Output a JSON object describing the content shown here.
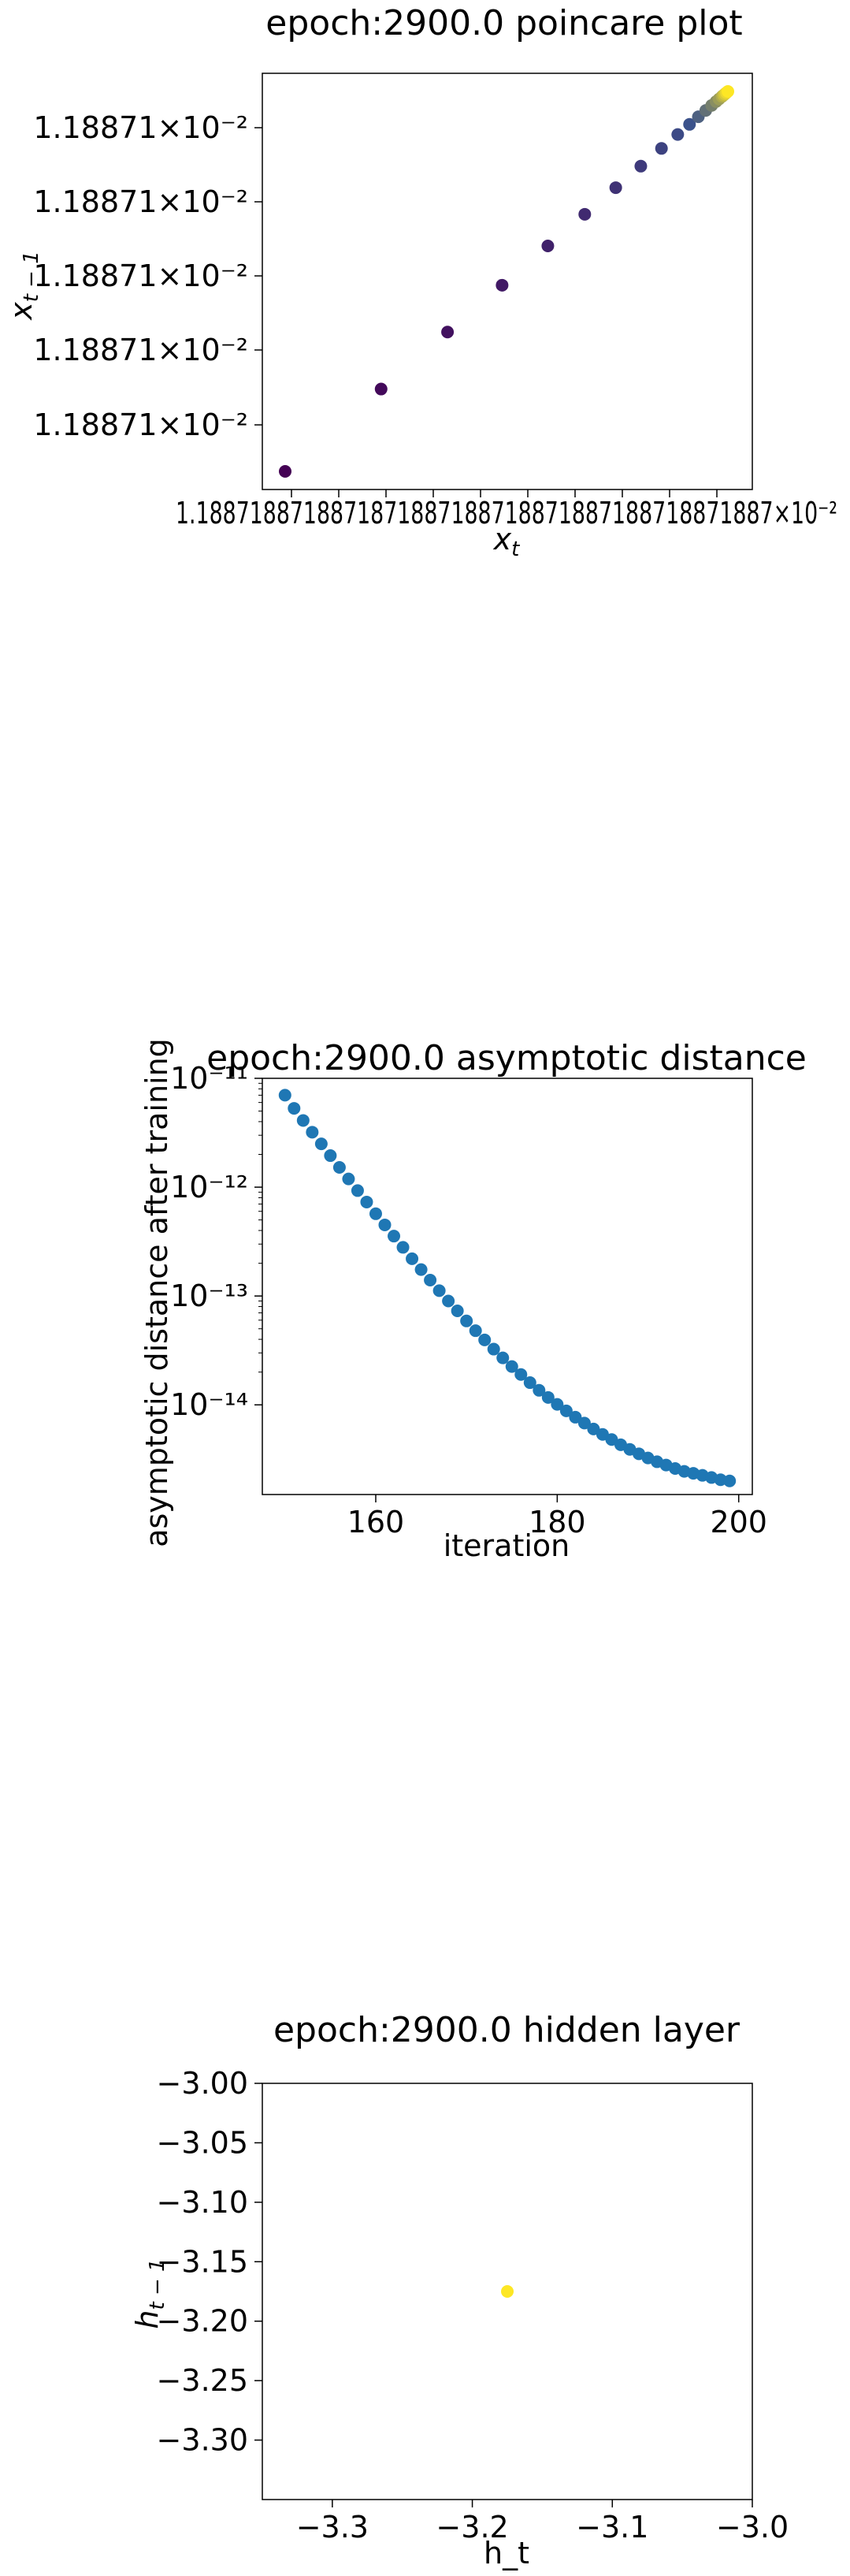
{
  "colors": {
    "viridis_start": "#440154",
    "viridis_mid": "#3b528b",
    "viridis_end": "#fde725",
    "series_blue": "#1f77b4",
    "axis": "#000000"
  },
  "chart_data": [
    {
      "type": "scatter",
      "title": "epoch:2900.0 poincare plot",
      "xlabel": "x_t",
      "ylabel": "x_{t-1}",
      "colormap": "viridis",
      "x_tick_labels_text": "1.18871×10⁻² (overlapping, unreadable)",
      "y_tick_labels": [
        "1.18871×10⁻²",
        "1.18871×10⁻²",
        "1.18871×10⁻²",
        "1.18871×10⁻²",
        "1.18871×10⁻²"
      ],
      "x_tick_text": "1.18871×10⁻²",
      "note_values": "points lie on the diagonal x_t = x_{t-1}, converging toward a fixed point near 0.0118871; color goes from dark purple (early) to yellow (late)",
      "points_relative": [
        0.0,
        0.2167,
        0.3667,
        0.49,
        0.5933,
        0.6767,
        0.7467,
        0.8033,
        0.85,
        0.8867,
        0.9133,
        0.9333,
        0.95,
        0.9633,
        0.9733,
        0.98,
        0.9867,
        0.99,
        0.9933,
        0.9967,
        1.0
      ]
    },
    {
      "type": "scatter",
      "title": "epoch:2900.0 asymptotic distance",
      "xlabel": "iteration",
      "ylabel": "asymptotic distance after training",
      "yscale": "log",
      "xlim": [
        147.5,
        201.5
      ],
      "ylim": [
        1.5e-15,
        1e-11
      ],
      "x_ticks": [
        160,
        180,
        200
      ],
      "y_ticks": [
        "10⁻¹¹",
        "10⁻¹²",
        "10⁻¹³",
        "10⁻¹⁴"
      ],
      "y_tick_values": [
        1e-11,
        1e-12,
        1e-13,
        1e-14
      ],
      "x": [
        150,
        151,
        152,
        153,
        154,
        155,
        156,
        157,
        158,
        159,
        160,
        161,
        162,
        163,
        164,
        165,
        166,
        167,
        168,
        169,
        170,
        171,
        172,
        173,
        174,
        175,
        176,
        177,
        178,
        179,
        180,
        181,
        182,
        183,
        184,
        185,
        186,
        187,
        188,
        189,
        190,
        191,
        192,
        193,
        194,
        195,
        196,
        197,
        198,
        199
      ],
      "y": [
        7e-12,
        5.3e-12,
        4.1e-12,
        3.2e-12,
        2.5e-12,
        1.95e-12,
        1.52e-12,
        1.19e-12,
        9.3e-13,
        7.3e-13,
        5.7e-13,
        4.5e-13,
        3.55e-13,
        2.8e-13,
        2.2e-13,
        1.75e-13,
        1.4e-13,
        1.12e-13,
        9e-14,
        7.3e-14,
        5.9e-14,
        4.8e-14,
        3.95e-14,
        3.25e-14,
        2.7e-14,
        2.25e-14,
        1.9e-14,
        1.6e-14,
        1.36e-14,
        1.17e-14,
        1.01e-14,
        8.8e-15,
        7.7e-15,
        6.8e-15,
        6e-15,
        5.35e-15,
        4.8e-15,
        4.3e-15,
        3.9e-15,
        3.55e-15,
        3.25e-15,
        3e-15,
        2.8e-15,
        2.6e-15,
        2.45e-15,
        2.35e-15,
        2.25e-15,
        2.15e-15,
        2.05e-15,
        2e-15
      ]
    },
    {
      "type": "scatter",
      "title": "epoch:2900.0 hidden layer",
      "xlabel": "h_t",
      "ylabel": "h_{t-1}",
      "xlim": [
        -3.35,
        -3.0
      ],
      "ylim": [
        -3.35,
        -3.0
      ],
      "x_ticks": [
        "−3.3",
        "−3.2",
        "−3.1",
        "−3.0"
      ],
      "x_tick_values": [
        -3.3,
        -3.2,
        -3.1,
        -3.0
      ],
      "y_ticks": [
        "−3.00",
        "−3.05",
        "−3.10",
        "−3.15",
        "−3.20",
        "−3.25",
        "−3.30"
      ],
      "y_tick_values": [
        -3.0,
        -3.05,
        -3.1,
        -3.15,
        -3.2,
        -3.25,
        -3.3
      ],
      "x": [
        -3.175
      ],
      "y": [
        -3.175
      ],
      "point_color": "#fde725"
    }
  ]
}
